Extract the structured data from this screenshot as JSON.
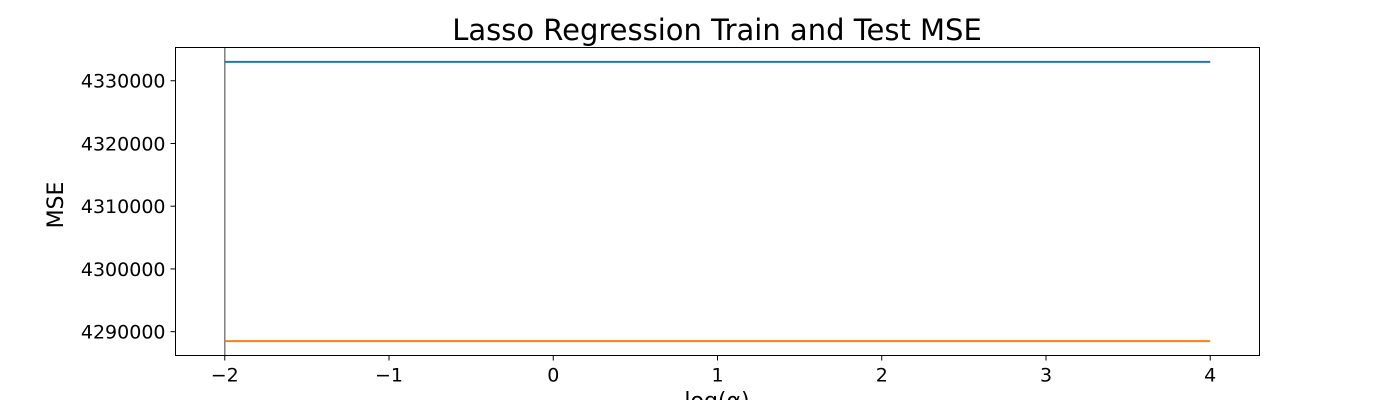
{
  "chart_data": {
    "type": "line",
    "title": "Lasso Regression Train and Test MSE",
    "xlabel": "log(α)",
    "ylabel": "MSE",
    "xlim": [
      -2.3,
      4.3
    ],
    "ylim": [
      4286200,
      4335300
    ],
    "xticks": [
      -2,
      -1,
      0,
      1,
      2,
      3,
      4
    ],
    "xtick_labels": [
      "−2",
      "−1",
      "0",
      "1",
      "2",
      "3",
      "4"
    ],
    "yticks": [
      4290000,
      4300000,
      4310000,
      4320000,
      4330000
    ],
    "ytick_labels": [
      "4290000",
      "4300000",
      "4310000",
      "4320000",
      "4330000"
    ],
    "grid": false,
    "legend": "none",
    "series": [
      {
        "color": "#1f77b4",
        "x": [
          -2,
          4
        ],
        "y": [
          4333000,
          4333000
        ]
      },
      {
        "color": "#ff7f0e",
        "x": [
          -2,
          4
        ],
        "y": [
          4288500,
          4288500
        ]
      }
    ],
    "vlines": [
      {
        "x": -2,
        "color": "#808080"
      }
    ]
  }
}
